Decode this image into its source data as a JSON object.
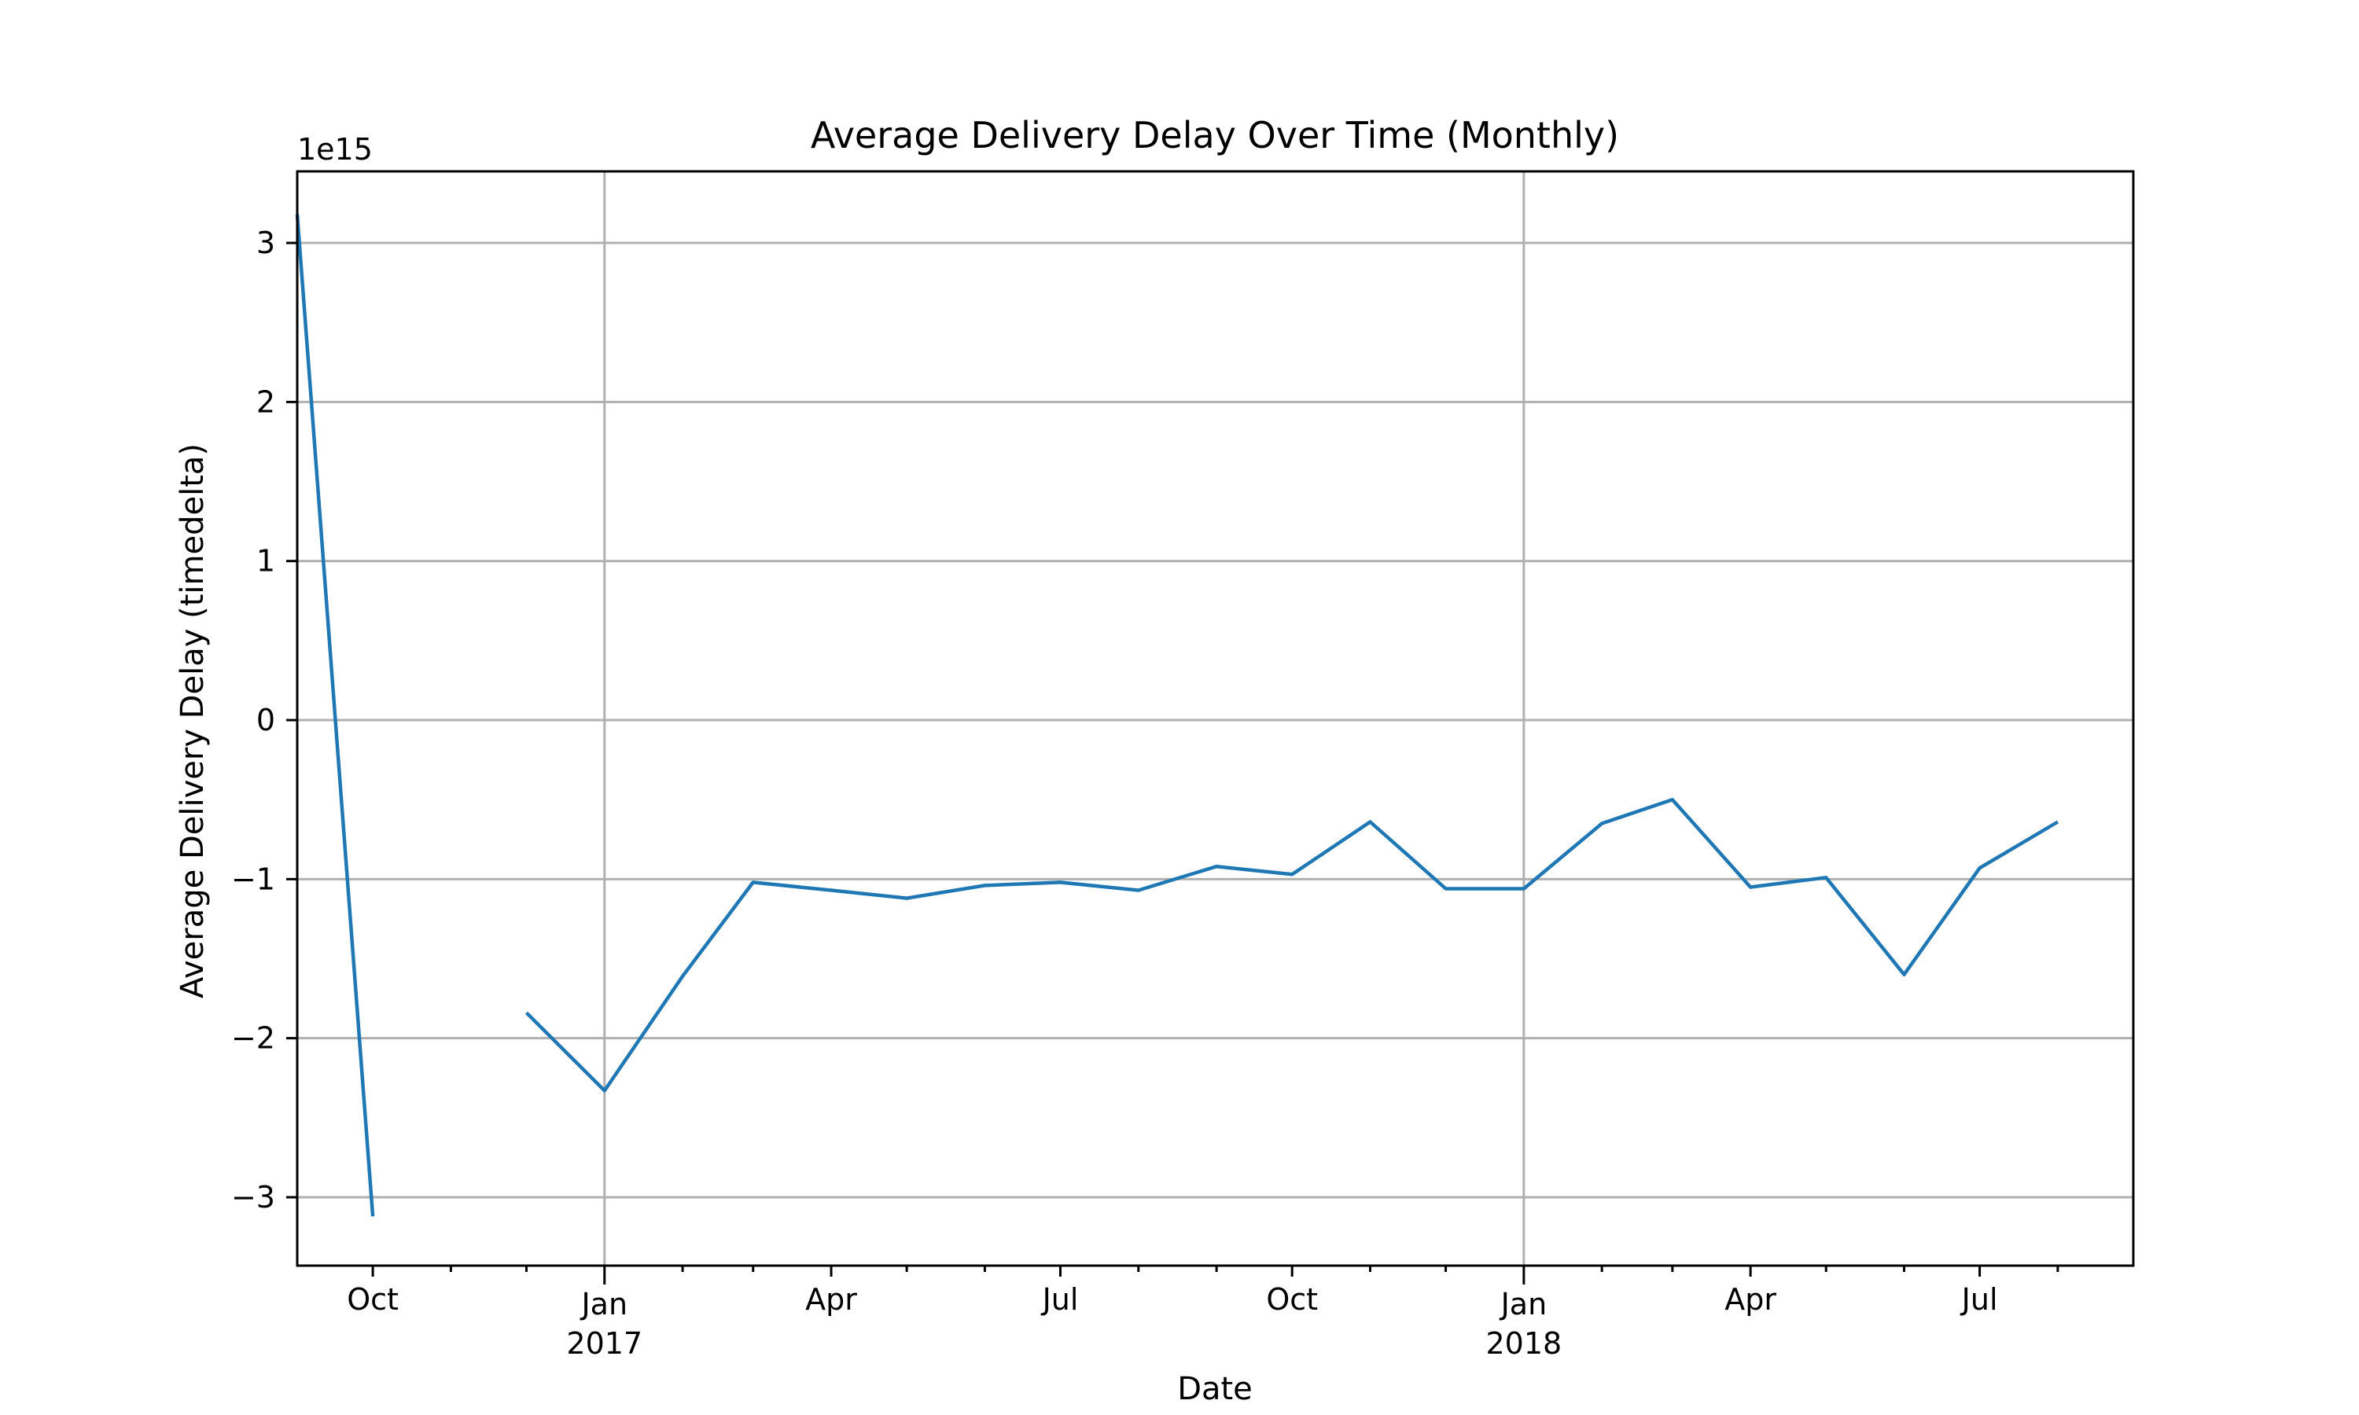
{
  "chart_data": {
    "type": "line",
    "title": "Average Delivery Delay Over Time (Monthly)",
    "xlabel": "Date",
    "ylabel": "Average Delivery Delay (timedelta)",
    "y_offset_label": "1e15",
    "ylim": [
      -3.43,
      3.45
    ],
    "xlim": [
      "2016-09-01",
      "2018-08-31"
    ],
    "grid": true,
    "legend": "none",
    "colors": {
      "series": "#1f77b4",
      "grid": "#b0b0b0",
      "axis": "#000000"
    },
    "y_ticks": [
      {
        "value": -3,
        "label": "−3"
      },
      {
        "value": -2,
        "label": "−2"
      },
      {
        "value": -1,
        "label": "−1"
      },
      {
        "value": 0,
        "label": "0"
      },
      {
        "value": 1,
        "label": "1"
      },
      {
        "value": 2,
        "label": "2"
      },
      {
        "value": 3,
        "label": "3"
      }
    ],
    "x_major_ticks": [
      {
        "date": "2016-10-01",
        "label": "Oct",
        "year_label": ""
      },
      {
        "date": "2017-01-01",
        "label": "Jan",
        "year_label": "2017"
      },
      {
        "date": "2017-04-01",
        "label": "Apr",
        "year_label": ""
      },
      {
        "date": "2017-07-01",
        "label": "Jul",
        "year_label": ""
      },
      {
        "date": "2017-10-01",
        "label": "Oct",
        "year_label": ""
      },
      {
        "date": "2018-01-01",
        "label": "Jan",
        "year_label": "2018"
      },
      {
        "date": "2018-04-01",
        "label": "Apr",
        "year_label": ""
      },
      {
        "date": "2018-07-01",
        "label": "Jul",
        "year_label": ""
      }
    ],
    "x_minor_ticks": [
      "2016-11-01",
      "2016-12-01",
      "2017-02-01",
      "2017-03-01",
      "2017-05-01",
      "2017-06-01",
      "2017-08-01",
      "2017-09-01",
      "2017-11-01",
      "2017-12-01",
      "2018-02-01",
      "2018-03-01",
      "2018-05-01",
      "2018-06-01",
      "2018-08-01"
    ],
    "x_grid_dates": [
      "2017-01-01",
      "2018-01-01"
    ],
    "series": [
      {
        "segments": [
          [
            {
              "x": "2016-09-01",
              "y": 3.18
            },
            {
              "x": "2016-10-01",
              "y": -3.12
            }
          ],
          [
            {
              "x": "2016-12-01",
              "y": -1.84
            },
            {
              "x": "2017-01-01",
              "y": -2.33
            },
            {
              "x": "2017-02-01",
              "y": -1.61
            },
            {
              "x": "2017-03-01",
              "y": -1.02
            },
            {
              "x": "2017-04-01",
              "y": -1.07
            },
            {
              "x": "2017-05-01",
              "y": -1.12
            },
            {
              "x": "2017-06-01",
              "y": -1.04
            },
            {
              "x": "2017-07-01",
              "y": -1.02
            },
            {
              "x": "2017-08-01",
              "y": -1.07
            },
            {
              "x": "2017-09-01",
              "y": -0.92
            },
            {
              "x": "2017-10-01",
              "y": -0.97
            },
            {
              "x": "2017-11-01",
              "y": -0.64
            },
            {
              "x": "2017-12-01",
              "y": -1.06
            },
            {
              "x": "2018-01-01",
              "y": -1.06
            },
            {
              "x": "2018-02-01",
              "y": -0.65
            },
            {
              "x": "2018-03-01",
              "y": -0.5
            },
            {
              "x": "2018-04-01",
              "y": -1.05
            },
            {
              "x": "2018-05-01",
              "y": -0.99
            },
            {
              "x": "2018-06-01",
              "y": -1.6
            },
            {
              "x": "2018-07-01",
              "y": -0.93
            },
            {
              "x": "2018-08-01",
              "y": -0.64
            }
          ]
        ]
      }
    ]
  }
}
